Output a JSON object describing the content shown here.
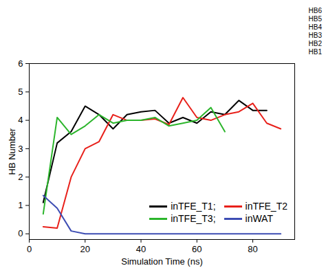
{
  "chart_data": {
    "type": "line",
    "x_label": "Simulation Time (ns)",
    "y_label": "HB Number",
    "x": [
      5,
      10,
      15,
      20,
      25,
      30,
      35,
      40,
      45,
      50,
      55,
      60,
      65,
      70,
      75,
      80,
      85,
      90
    ],
    "series": [
      {
        "name": "inTFE_T1;",
        "color": "#000000",
        "values": [
          1.1,
          3.2,
          3.6,
          4.5,
          4.2,
          3.7,
          4.2,
          4.3,
          4.35,
          3.9,
          4.1,
          3.9,
          4.3,
          4.2,
          4.7,
          4.35,
          4.35,
          null
        ]
      },
      {
        "name": "inTFE_T2",
        "color": "#e8201a",
        "values": [
          0.25,
          0.2,
          2.0,
          3.0,
          3.25,
          4.2,
          4.0,
          4.0,
          4.05,
          3.85,
          4.8,
          4.1,
          4.0,
          4.2,
          4.3,
          4.6,
          3.9,
          3.7
        ]
      },
      {
        "name": "inTFE_T3;",
        "color": "#2bb52b",
        "values": [
          0.7,
          4.1,
          3.5,
          3.8,
          4.2,
          3.9,
          4.0,
          4.0,
          4.1,
          3.8,
          3.9,
          4.0,
          4.45,
          3.6,
          null,
          null,
          null,
          null
        ]
      },
      {
        "name": "inWAT",
        "color": "#3d4db3",
        "values": [
          1.35,
          0.9,
          0.1,
          0,
          0,
          0,
          0,
          0,
          0,
          0,
          0,
          0,
          0,
          0,
          0,
          0,
          0,
          0
        ]
      }
    ],
    "xlim": [
      0,
      95
    ],
    "xticks": [
      0,
      20,
      40,
      60,
      80
    ],
    "ylim": [
      -0.2,
      6
    ],
    "yticks": [
      0,
      1,
      2,
      3,
      4,
      5,
      6
    ],
    "legend": "lower right",
    "annotations": [
      "HB6",
      "HB5",
      "HB4",
      "HB3",
      "HB2",
      "HB1"
    ]
  }
}
